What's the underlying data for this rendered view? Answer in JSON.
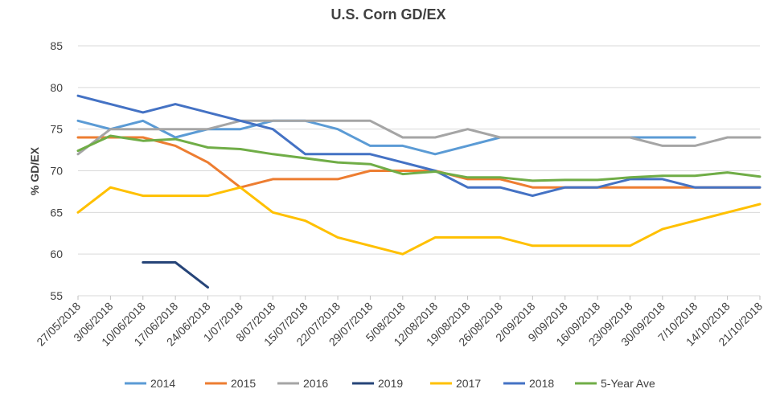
{
  "chart_data": {
    "type": "line",
    "title": "U.S. Corn GD/EX",
    "xlabel": "",
    "ylabel": "% GD/EX",
    "ylim": [
      55,
      85
    ],
    "yticks": [
      55,
      60,
      65,
      70,
      75,
      80,
      85
    ],
    "grid": true,
    "legend_position": "bottom",
    "categories": [
      "27/05/2018",
      "3/06/2018",
      "10/06/2018",
      "17/06/2018",
      "24/06/2018",
      "1/07/2018",
      "8/07/2018",
      "15/07/2018",
      "22/07/2018",
      "29/07/2018",
      "5/08/2018",
      "12/08/2018",
      "19/08/2018",
      "26/08/2018",
      "2/09/2018",
      "9/09/2018",
      "16/09/2018",
      "23/09/2018",
      "30/09/2018",
      "7/10/2018",
      "14/10/2018",
      "21/10/2018"
    ],
    "series": [
      {
        "name": "2014",
        "color": "#5B9BD5",
        "values": [
          76,
          75,
          76,
          74,
          75,
          75,
          76,
          76,
          75,
          73,
          73,
          72,
          73,
          74,
          74,
          74,
          74,
          74,
          74,
          74,
          null,
          null
        ]
      },
      {
        "name": "2015",
        "color": "#ED7D31",
        "values": [
          74,
          74,
          74,
          73,
          71,
          68,
          69,
          69,
          69,
          70,
          70,
          70,
          69,
          69,
          68,
          68,
          68,
          68,
          68,
          68,
          68,
          68
        ]
      },
      {
        "name": "2016",
        "color": "#A5A5A5",
        "values": [
          72,
          75,
          75,
          75,
          75,
          76,
          76,
          76,
          76,
          76,
          74,
          74,
          75,
          74,
          74,
          74,
          74,
          74,
          73,
          73,
          74,
          74
        ]
      },
      {
        "name": "2019",
        "color": "#264478",
        "values": [
          null,
          null,
          59,
          59,
          56,
          null,
          null,
          null,
          null,
          null,
          null,
          null,
          null,
          null,
          null,
          null,
          null,
          null,
          null,
          null,
          null,
          null
        ]
      },
      {
        "name": "2017",
        "color": "#FFC000",
        "values": [
          65,
          68,
          67,
          67,
          67,
          68,
          65,
          64,
          62,
          61,
          60,
          62,
          62,
          62,
          61,
          61,
          61,
          61,
          63,
          64,
          65,
          66
        ]
      },
      {
        "name": "2018",
        "color": "#4472C4",
        "values": [
          79,
          78,
          77,
          78,
          77,
          76,
          75,
          72,
          72,
          72,
          71,
          70,
          68,
          68,
          67,
          68,
          68,
          69,
          69,
          68,
          68,
          68
        ]
      },
      {
        "name": "5-Year Ave",
        "color": "#70AD47",
        "values": [
          72.4,
          74.2,
          73.6,
          73.8,
          72.8,
          72.6,
          72.0,
          71.5,
          71.0,
          70.8,
          69.6,
          69.9,
          69.2,
          69.2,
          68.8,
          68.9,
          68.9,
          69.2,
          69.4,
          69.4,
          69.8,
          69.3
        ]
      }
    ]
  }
}
